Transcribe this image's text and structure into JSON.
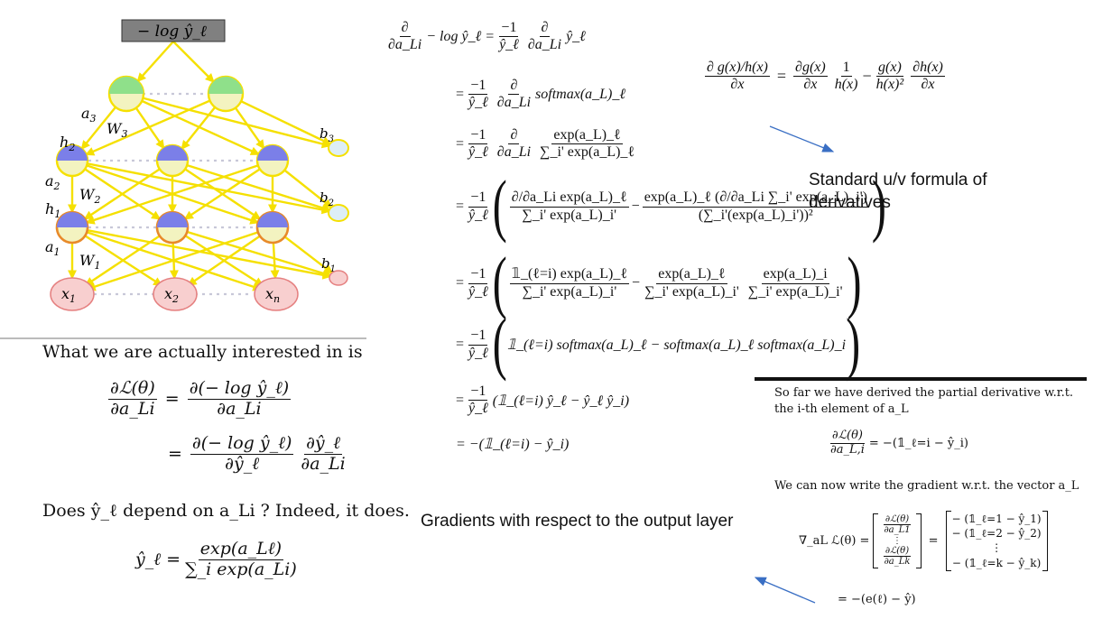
{
  "network": {
    "top_label": "− log ŷ_ℓ",
    "a3": "a",
    "a3_sub": "3",
    "W3": "W",
    "W3_sub": "3",
    "b3": "b",
    "b3_sub": "3",
    "h2": "h",
    "h2_sub": "2",
    "a2": "a",
    "a2_sub": "2",
    "W2": "W",
    "W2_sub": "2",
    "b2": "b",
    "b2_sub": "2",
    "h1": "h",
    "h1_sub": "1",
    "a1": "a",
    "a1_sub": "1",
    "W1": "W",
    "W1_sub": "1",
    "b1": "b",
    "b1_sub": "1",
    "x1": "x",
    "x1_sub": "1",
    "x2": "x",
    "x2_sub": "2",
    "xn": "x",
    "xn_sub": "n",
    "colors": {
      "edge": "#f5e000",
      "input_fill": "#f8cfcf",
      "input_stroke": "#e58080",
      "hidden_blue": "#7b7fe8",
      "output_green": "#8fe08a",
      "node_fill": "#f3f3c0",
      "box_fill": "#808080"
    }
  },
  "left_text": {
    "line1": "What we are actually interested in is",
    "eq1_lhs_num": "∂ℒ(θ)",
    "eq1_lhs_den": "∂a_Li",
    "eq1_rhs_num": "∂(− log ŷ_ℓ)",
    "eq1_rhs_den": "∂a_Li",
    "eq2_num1": "∂(− log ŷ_ℓ)",
    "eq2_den1": "∂ŷ_ℓ",
    "eq2_num2": "∂ŷ_ℓ",
    "eq2_den2": "∂a_Li",
    "line2": "Does ŷ_ℓ depend on a_Li ? Indeed, it does.",
    "eq3_lhs": "ŷ_ℓ =",
    "eq3_num": "exp(a_Lℓ)",
    "eq3_den": "∑_i exp(a_Li)"
  },
  "derivation": {
    "lines": [
      "∂/∂a_Li − log ŷ_ℓ = −1/ŷ_ℓ ∂/∂a_Li ŷ_ℓ",
      "= −1/ŷ_ℓ ∂/∂a_Li softmax(a_L)_ℓ",
      "= −1/ŷ_ℓ ∂/∂a_Li exp(a_L)_ℓ / ∑_i' exp(a_L)_ℓ",
      "= −1/ŷ_ℓ ( (∂/∂a_Li exp(a_L)_ℓ) / ∑_i' exp(a_L)_i' − exp(a_L)_ℓ (∂/∂a_Li ∑_i' exp(a_L)_i') / (∑_i'(exp(a_L)_i'))² )",
      "= −1/ŷ_ℓ ( 𝟙_(ℓ=i) exp(a_L)_ℓ / ∑_i' exp(a_L)_i' − exp(a_L)_ℓ / ∑_i' exp(a_L)_i' · exp(a_L)_i / ∑_i' exp(a_L)_i' )",
      "= −1/ŷ_ℓ ( 𝟙_(ℓ=i) softmax(a_L)_ℓ − softmax(a_L)_ℓ softmax(a_L)_i )",
      "= −1/ŷ_ℓ (𝟙_(ℓ=i) ŷ_ℓ − ŷ_ℓ ŷ_i)",
      "= −(𝟙_(ℓ=i) − ŷ_i)"
    ],
    "t_minus1": "−1",
    "t_yl": "ŷ_ℓ",
    "t_partial": "∂",
    "t_dali": "∂a_Li",
    "t_neglog": "− log ŷ_ℓ =",
    "t_yl_plain": "ŷ_ℓ",
    "t_softmax": "softmax(a_L)_ℓ",
    "t_exp_l": "exp(a_L)_ℓ",
    "t_sum_exp_l": "∑_i' exp(a_L)_ℓ",
    "t_sum_exp_ip": "∑_i' exp(a_L)_i'",
    "t_sum_sq": "(∑_i'(exp(a_L)_i'))²",
    "t_exp_i": "exp(a_L)_i",
    "t_ind_exp": "𝟙_(ℓ=i) exp(a_L)_ℓ",
    "t_line6": "𝟙_(ℓ=i) softmax(a_L)_ℓ − softmax(a_L)_ℓ softmax(a_L)_i",
    "t_line7": "(𝟙_(ℓ=i) ŷ_ℓ − ŷ_ℓ ŷ_i)",
    "t_line8": "= −(𝟙_(ℓ=i) − ŷ_i)",
    "t_eq": "=",
    "t_minus": "−",
    "t_d_exp_l": "∂/∂a_Li exp(a_L)_ℓ",
    "t_d_sum": "∂/∂a_Li ∑_i' exp(a_L)_i'"
  },
  "uv_formula": {
    "lhs_num": "∂ g(x)/h(x)",
    "lhs_den": "∂x",
    "t1_num": "∂g(x)",
    "t1_den": "∂x",
    "t2_num": "1",
    "t2_den": "h(x)",
    "t3_num": "g(x)",
    "t3_den": "h(x)²",
    "t4_num": "∂h(x)",
    "t4_den": "∂x",
    "eq": "=",
    "minus": "−"
  },
  "annotations": {
    "uv_note": "Standard u/v formula of derivatives",
    "output_note": "Gradients with respect to the output layer",
    "arrow_color": "#3a6fc4"
  },
  "right_box": {
    "line1": "So far we have derived the partial derivative w.r.t.",
    "line2": "the i-th element of a_L",
    "eq1_num": "∂ℒ(θ)",
    "eq1_den": "∂a_L,i",
    "eq1_rhs": "= −(𝟙_ℓ=i − ŷ_i)",
    "line3": "We can now write the gradient w.r.t. the vector a_L",
    "grad_lhs": "∇_aL ℒ(θ) =",
    "m1_r1_num": "∂ℒ(θ)",
    "m1_r1_den": "∂a_L1",
    "m1_dots": "⋮",
    "m1_r3_num": "∂ℒ(θ)",
    "m1_r3_den": "∂a_Lk",
    "eq_mid": "=",
    "m2_r1": "− (𝟙_ℓ=1 − ŷ_1)",
    "m2_r2": "− (𝟙_ℓ=2 − ŷ_2)",
    "m2_dots": "⋮",
    "m2_r4": "− (𝟙_ℓ=k − ŷ_k)",
    "final": "= −(e(ℓ) − ŷ)"
  }
}
